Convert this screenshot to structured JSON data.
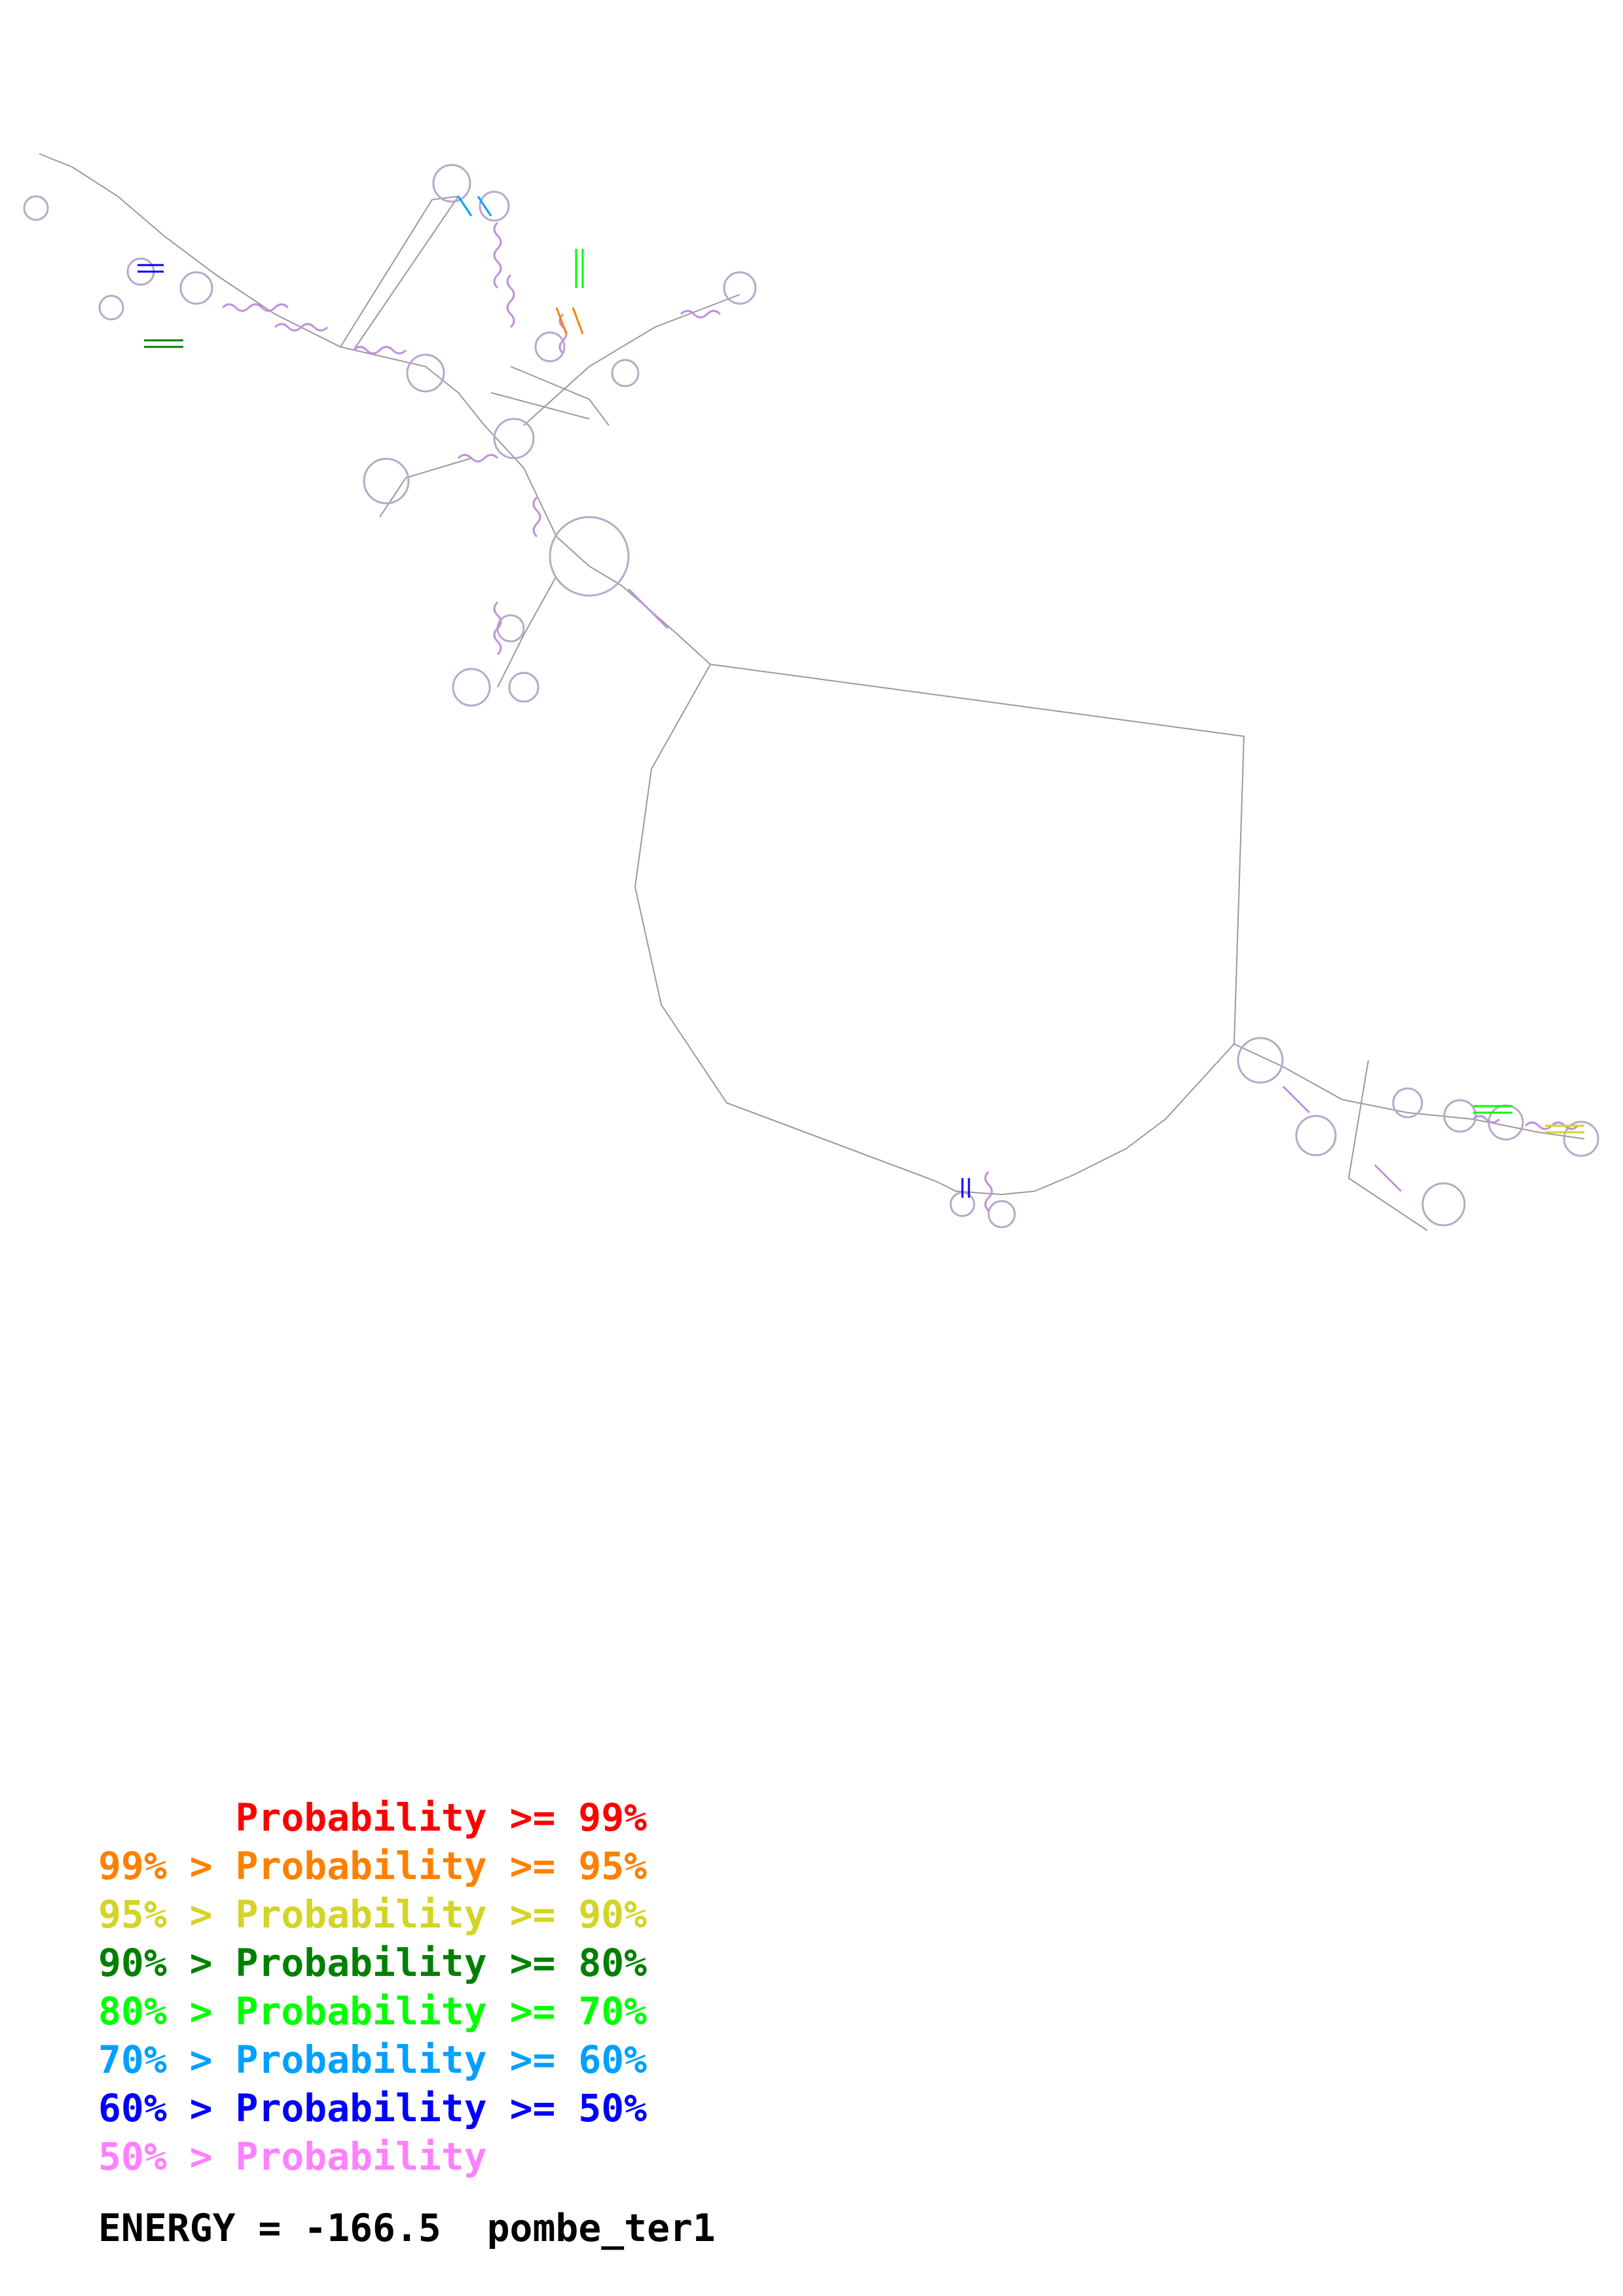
{
  "legend": [
    {
      "prefix": "",
      "label": "Probability",
      "suffix": ">= 99%",
      "color": "#ff0000"
    },
    {
      "prefix": "99% >",
      "label": "Probability",
      "suffix": ">= 95%",
      "color": "#ff8000"
    },
    {
      "prefix": "95% >",
      "label": "Probability",
      "suffix": ">= 90%",
      "color": "#d4d428"
    },
    {
      "prefix": "90% >",
      "label": "Probability",
      "suffix": ">= 80%",
      "color": "#008000"
    },
    {
      "prefix": "80% >",
      "label": "Probability",
      "suffix": ">= 70%",
      "color": "#00ff00"
    },
    {
      "prefix": "70% >",
      "label": "Probability",
      "suffix": ">= 60%",
      "color": "#00a0ff"
    },
    {
      "prefix": "60% >",
      "label": "Probability",
      "suffix": ">= 50%",
      "color": "#0000ff"
    },
    {
      "prefix": "50% >",
      "label": "Probability",
      "suffix": "",
      "color": "#ff80ff"
    }
  ],
  "footer": {
    "energy_label": "ENERGY =",
    "energy_value": "-166.5",
    "sequence_name": "pombe_ter1"
  },
  "colors": {
    "backbone": "#9a9a9a",
    "base_default": "#b8a8c8",
    "pair_line": "#c8b4d8"
  }
}
